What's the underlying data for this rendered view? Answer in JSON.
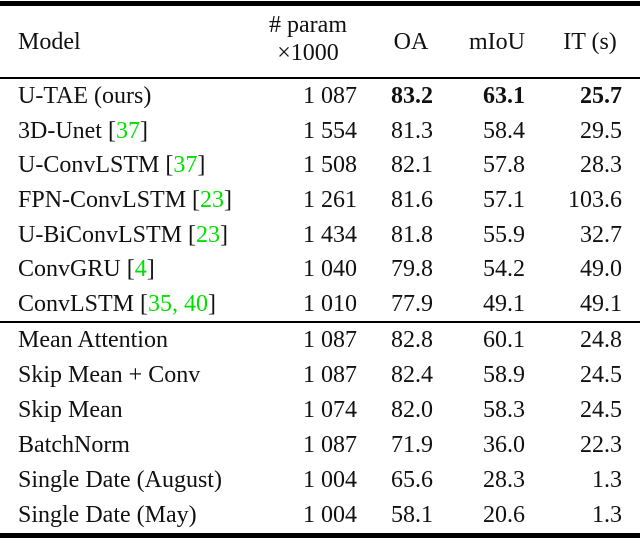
{
  "table": {
    "colors": {
      "citation_green": "#00e000",
      "text": "#111111",
      "rule": "#000000",
      "background": "#ffffff"
    },
    "header": {
      "model": "Model",
      "param_line1": "# param",
      "param_line2": "×1000",
      "oa": "OA",
      "miou": "mIoU",
      "it": "IT (s)"
    },
    "sections": [
      {
        "rows": [
          {
            "model": "U-TAE (ours)",
            "param": "1 087",
            "oa": "83.2",
            "miou": "63.1",
            "it": "25.7"
          },
          {
            "model": "3D-Unet",
            "cite_open": " [",
            "cite": "37",
            "cite_close": "]",
            "param": "1 554",
            "oa": "81.3",
            "miou": "58.4",
            "it": "29.5"
          },
          {
            "model": "U-ConvLSTM",
            "cite_open": " [",
            "cite": "37",
            "cite_close": "]",
            "param": "1 508",
            "oa": "82.1",
            "miou": "57.8",
            "it": "28.3"
          },
          {
            "model": "FPN-ConvLSTM",
            "cite_open": " [",
            "cite": "23",
            "cite_close": "]",
            "param": "1 261",
            "oa": "81.6",
            "miou": "57.1",
            "it": "103.6"
          },
          {
            "model": "U-BiConvLSTM",
            "cite_open": " [",
            "cite": "23",
            "cite_close": "]",
            "param": "1 434",
            "oa": "81.8",
            "miou": "55.9",
            "it": "32.7"
          },
          {
            "model": "ConvGRU",
            "cite_open": " [",
            "cite": "4",
            "cite_close": "]",
            "param": "1 040",
            "oa": "79.8",
            "miou": "54.2",
            "it": "49.0"
          },
          {
            "model": "ConvLSTM",
            "cite_open": " [",
            "cite": "35, 40",
            "cite_close": "]",
            "param": "1 010",
            "oa": "77.9",
            "miou": "49.1",
            "it": "49.1"
          }
        ]
      },
      {
        "rows": [
          {
            "model": "Mean Attention",
            "param": "1 087",
            "oa": "82.8",
            "miou": "60.1",
            "it": "24.8"
          },
          {
            "model": "Skip Mean + Conv",
            "param": "1 087",
            "oa": "82.4",
            "miou": "58.9",
            "it": "24.5"
          },
          {
            "model": "Skip Mean",
            "param": "1 074",
            "oa": "82.0",
            "miou": "58.3",
            "it": "24.5"
          },
          {
            "model": "BatchNorm",
            "param": "1 087",
            "oa": "71.9",
            "miou": "36.0",
            "it": "22.3"
          },
          {
            "model": "Single Date (August)",
            "param": "1 004",
            "oa": "65.6",
            "miou": "28.3",
            "it": "1.3"
          },
          {
            "model": "Single Date (May)",
            "param": "1 004",
            "oa": "58.1",
            "miou": "20.6",
            "it": "1.3"
          }
        ]
      }
    ]
  }
}
